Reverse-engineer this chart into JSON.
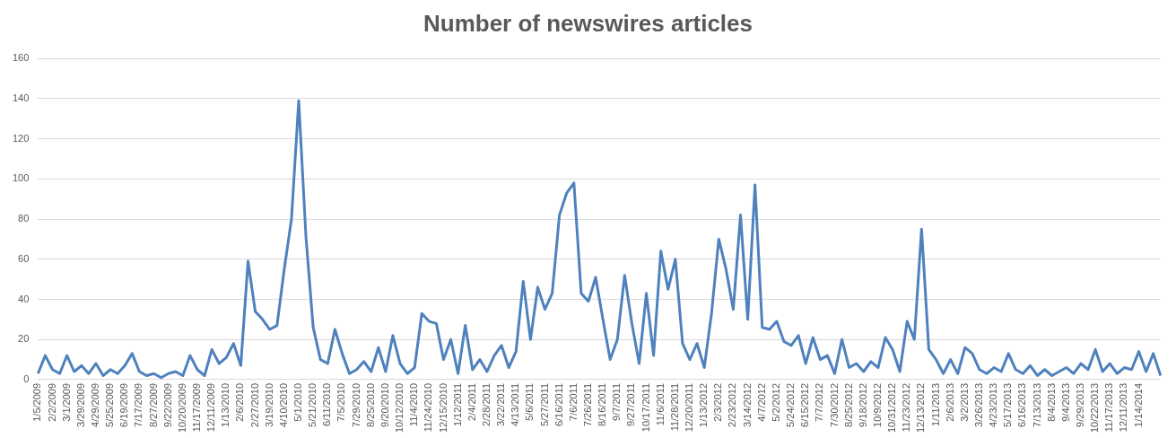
{
  "chart_data": {
    "type": "line",
    "title": "Number of newswires articles",
    "categories": [
      "1/5/2009",
      null,
      "2/2/2009",
      null,
      "3/1/2009",
      null,
      "3/29/2009",
      null,
      "4/29/2009",
      null,
      "5/25/2009",
      null,
      "6/19/2009",
      null,
      "7/17/2009",
      null,
      "8/27/2009",
      null,
      "9/22/2009",
      null,
      "10/20/2009",
      null,
      "11/17/2009",
      null,
      "12/11/2009",
      null,
      "1/13/2010",
      null,
      "2/6/2010",
      null,
      "2/27/2010",
      null,
      "3/19/2010",
      null,
      "4/10/2010",
      null,
      "5/1/2010",
      null,
      "5/21/2010",
      null,
      "6/11/2010",
      null,
      "7/5/2010",
      null,
      "7/29/2010",
      null,
      "8/25/2010",
      null,
      "9/20/2010",
      null,
      "10/12/2010",
      null,
      "11/4/2010",
      null,
      "11/24/2010",
      null,
      "12/15/2010",
      null,
      "1/12/2011",
      null,
      "2/4/2011",
      null,
      "2/28/2011",
      null,
      "3/22/2011",
      null,
      "4/13/2011",
      null,
      "5/6/2011",
      null,
      "5/27/2011",
      null,
      "6/16/2011",
      null,
      "7/6/2011",
      null,
      "7/26/2011",
      null,
      "8/16/2011",
      null,
      "9/7/2011",
      null,
      "9/27/2011",
      null,
      "10/17/2011",
      null,
      "11/6/2011",
      null,
      "11/28/2011",
      null,
      "12/20/2011",
      null,
      "1/13/2012",
      null,
      "2/3/2012",
      null,
      "2/23/2012",
      null,
      "3/14/2012",
      null,
      "4/7/2012",
      null,
      "5/2/2012",
      null,
      "5/24/2012",
      null,
      "6/15/2012",
      null,
      "7/7/2012",
      null,
      "7/30/2012",
      null,
      "8/25/2012",
      null,
      "9/18/2012",
      null,
      "10/9/2012",
      null,
      "10/31/2012",
      null,
      "11/23/2012",
      null,
      "12/13/2012",
      null,
      "1/11/2013",
      null,
      "2/6/2013",
      null,
      "3/2/2013",
      null,
      "3/26/2013",
      null,
      "4/23/2013",
      null,
      "5/17/2013",
      null,
      "6/16/2013",
      null,
      "7/13/2013",
      null,
      "8/4/2013",
      null,
      "9/4/2013",
      null,
      "9/29/2013",
      null,
      "10/22/2013",
      null,
      "11/17/2013",
      null,
      "12/11/2013",
      null,
      "1/14/2014",
      null,
      null,
      null
    ],
    "series": [
      {
        "color": "#4f81bd",
        "values": [
          3,
          12,
          5,
          3,
          12,
          4,
          7,
          3,
          8,
          2,
          5,
          3,
          7,
          13,
          4,
          2,
          3,
          1,
          3,
          4,
          2,
          12,
          5,
          2,
          15,
          8,
          11,
          18,
          7,
          59,
          34,
          30,
          25,
          27,
          55,
          80,
          139,
          71,
          26,
          10,
          8,
          25,
          13,
          3,
          5,
          9,
          4,
          16,
          4,
          22,
          8,
          3,
          6,
          33,
          29,
          28,
          10,
          20,
          3,
          27,
          5,
          10,
          4,
          12,
          17,
          6,
          14,
          49,
          20,
          46,
          35,
          43,
          82,
          93,
          98,
          43,
          39,
          51,
          30,
          10,
          20,
          52,
          28,
          8,
          43,
          12,
          64,
          45,
          60,
          18,
          10,
          18,
          6,
          33,
          70,
          55,
          35,
          82,
          30,
          97,
          26,
          25,
          29,
          19,
          17,
          22,
          8,
          21,
          10,
          12,
          3,
          20,
          6,
          8,
          4,
          9,
          6,
          21,
          15,
          4,
          29,
          20,
          75,
          15,
          10,
          3,
          10,
          3,
          16,
          13,
          5,
          3,
          6,
          4,
          13,
          5,
          3,
          7,
          2,
          5,
          2,
          4,
          6,
          3,
          8,
          5,
          15,
          4,
          8,
          3,
          6,
          5,
          14,
          4,
          13,
          2
        ]
      }
    ],
    "ylim": [
      0,
      160
    ],
    "yticks": [
      0,
      20,
      40,
      60,
      80,
      100,
      120,
      140,
      160
    ],
    "grid": "y",
    "legend": false,
    "marker": "none",
    "line_style": "solid"
  }
}
